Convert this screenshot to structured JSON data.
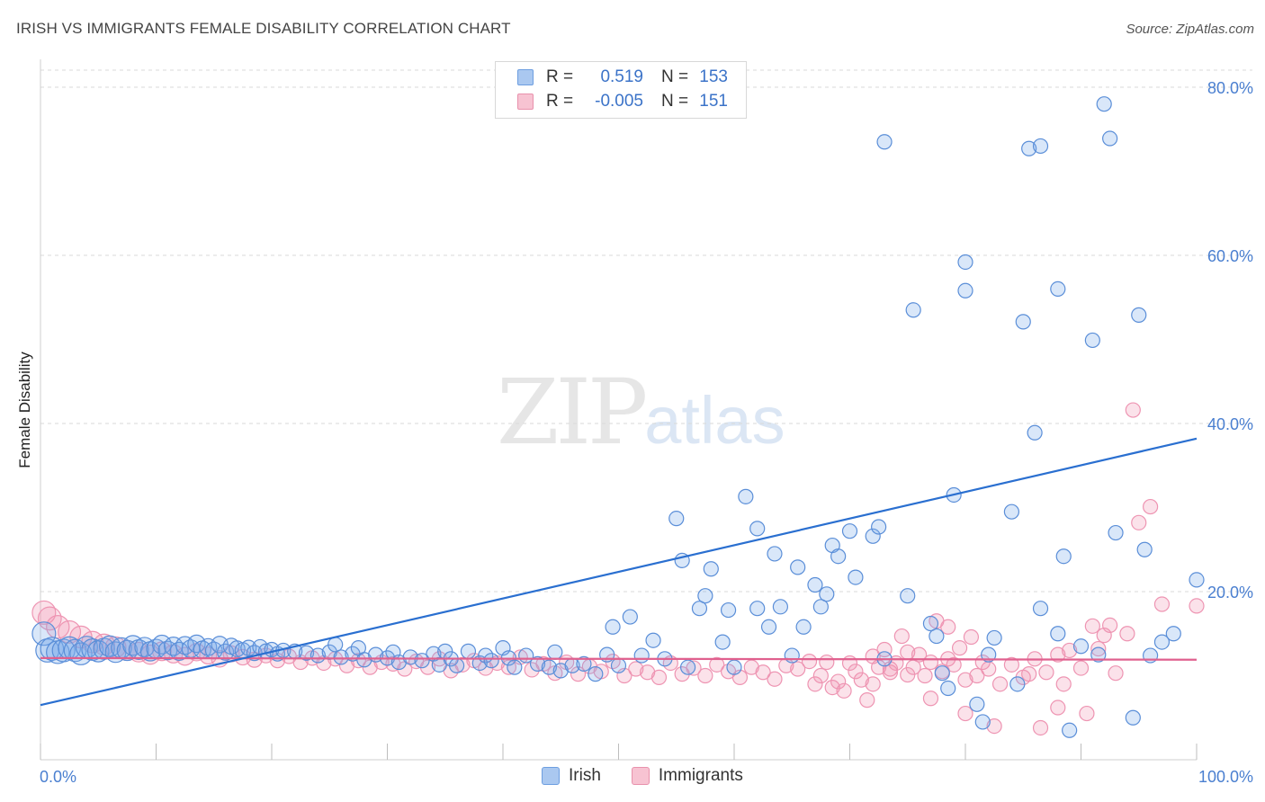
{
  "header": {
    "title": "IRISH VS IMMIGRANTS FEMALE DISABILITY CORRELATION CHART",
    "source": "Source: ZipAtlas.com"
  },
  "watermark": {
    "zip": "ZIP",
    "atlas": "atlas"
  },
  "legend": {
    "rows": [
      {
        "label": "R =",
        "r": "0.519",
        "n_label": "N =",
        "n": "153",
        "color": "#aac8f0",
        "border": "#6d9ee0"
      },
      {
        "label": "R =",
        "r": "-0.005",
        "n_label": "N =",
        "n": "151",
        "color": "#f7c3d2",
        "border": "#e891ac"
      }
    ]
  },
  "bottom_legend": {
    "irish": "Irish",
    "immigrants": "Immigrants"
  },
  "colors": {
    "irish_fill": "rgba(120,168,232,0.28)",
    "irish_stroke": "#5a8ed8",
    "irish_line": "#2a6fd0",
    "imm_fill": "rgba(242,150,180,0.28)",
    "imm_stroke": "#ee94b2",
    "imm_line": "#e0608e",
    "tick_text": "#4a7fd0",
    "grid": "#d9d9d9"
  },
  "chart_data": {
    "type": "scatter",
    "title": "IRISH VS IMMIGRANTS FEMALE DISABILITY CORRELATION CHART",
    "xlabel": "",
    "ylabel": "Female Disability",
    "xlim": [
      0,
      100
    ],
    "ylim": [
      0,
      80
    ],
    "x_tick_labels": [
      "0.0%",
      "100.0%"
    ],
    "y_ticks": [
      20,
      40,
      60,
      80
    ],
    "y_tick_labels": [
      "20.0%",
      "40.0%",
      "60.0%",
      "80.0%"
    ],
    "grid": true,
    "legend_position": "top-center",
    "series": [
      {
        "name": "Irish",
        "r": 0.519,
        "n": 153,
        "trend": {
          "x": [
            0,
            100
          ],
          "y": [
            6.5,
            38.2
          ]
        },
        "points": [
          [
            0.3,
            15.0
          ],
          [
            0.6,
            13.0
          ],
          [
            1.0,
            13.2
          ],
          [
            1.5,
            12.8
          ],
          [
            2.0,
            13.0
          ],
          [
            2.5,
            13.3
          ],
          [
            3.0,
            13.0
          ],
          [
            3.5,
            12.6
          ],
          [
            4.0,
            13.4
          ],
          [
            4.5,
            13.1
          ],
          [
            5.0,
            12.9
          ],
          [
            5.5,
            13.2
          ],
          [
            6.0,
            13.5
          ],
          [
            6.5,
            12.8
          ],
          [
            7.0,
            13.3
          ],
          [
            7.5,
            13.0
          ],
          [
            8.0,
            13.6
          ],
          [
            8.5,
            13.1
          ],
          [
            9.0,
            13.4
          ],
          [
            9.5,
            12.9
          ],
          [
            10.0,
            13.2
          ],
          [
            10.5,
            13.7
          ],
          [
            11.0,
            13.0
          ],
          [
            11.5,
            13.5
          ],
          [
            12.0,
            12.9
          ],
          [
            12.5,
            13.6
          ],
          [
            13.0,
            13.2
          ],
          [
            13.5,
            13.8
          ],
          [
            14.0,
            13.1
          ],
          [
            14.5,
            13.4
          ],
          [
            15.0,
            13.0
          ],
          [
            15.5,
            13.7
          ],
          [
            16.0,
            12.8
          ],
          [
            16.5,
            13.5
          ],
          [
            17.0,
            13.2
          ],
          [
            17.5,
            13.0
          ],
          [
            18.0,
            13.3
          ],
          [
            18.5,
            12.7
          ],
          [
            19.0,
            13.4
          ],
          [
            19.5,
            12.9
          ],
          [
            20.0,
            13.1
          ],
          [
            20.5,
            12.6
          ],
          [
            21.0,
            13.0
          ],
          [
            22.0,
            12.9
          ],
          [
            23.0,
            12.7
          ],
          [
            24.0,
            12.4
          ],
          [
            25.0,
            12.8
          ],
          [
            25.5,
            13.7
          ],
          [
            26.0,
            12.2
          ],
          [
            27.0,
            12.6
          ],
          [
            27.5,
            13.3
          ],
          [
            28.0,
            11.9
          ],
          [
            29.0,
            12.5
          ],
          [
            30.0,
            12.1
          ],
          [
            30.5,
            12.8
          ],
          [
            31.0,
            11.6
          ],
          [
            32.0,
            12.2
          ],
          [
            33.0,
            11.8
          ],
          [
            34.0,
            12.6
          ],
          [
            34.5,
            11.3
          ],
          [
            35.0,
            12.9
          ],
          [
            35.5,
            12.0
          ],
          [
            36.0,
            11.2
          ],
          [
            37.0,
            12.9
          ],
          [
            38.0,
            11.5
          ],
          [
            38.5,
            12.4
          ],
          [
            39.0,
            11.8
          ],
          [
            40.0,
            13.3
          ],
          [
            40.5,
            12.1
          ],
          [
            41.0,
            11.0
          ],
          [
            42.0,
            12.4
          ],
          [
            43.0,
            11.4
          ],
          [
            44.0,
            11.0
          ],
          [
            44.5,
            12.8
          ],
          [
            45.0,
            10.6
          ],
          [
            46.0,
            11.2
          ],
          [
            47.0,
            11.4
          ],
          [
            48.0,
            10.2
          ],
          [
            49.0,
            12.5
          ],
          [
            49.5,
            15.8
          ],
          [
            50.0,
            11.2
          ],
          [
            51.0,
            17.0
          ],
          [
            52.0,
            12.4
          ],
          [
            53.0,
            14.2
          ],
          [
            54.0,
            12.0
          ],
          [
            55.0,
            28.7
          ],
          [
            55.5,
            23.7
          ],
          [
            56.0,
            11.0
          ],
          [
            57.0,
            18.0
          ],
          [
            57.5,
            19.5
          ],
          [
            58.0,
            22.7
          ],
          [
            59.0,
            14.0
          ],
          [
            59.5,
            17.8
          ],
          [
            60.0,
            11.0
          ],
          [
            61.0,
            31.3
          ],
          [
            62.0,
            27.5
          ],
          [
            62.0,
            18.0
          ],
          [
            63.0,
            15.8
          ],
          [
            63.5,
            24.5
          ],
          [
            64.0,
            18.2
          ],
          [
            65.0,
            12.4
          ],
          [
            65.5,
            22.9
          ],
          [
            66.0,
            15.8
          ],
          [
            67.0,
            20.8
          ],
          [
            67.5,
            18.2
          ],
          [
            68.0,
            19.7
          ],
          [
            68.5,
            25.5
          ],
          [
            69.0,
            24.2
          ],
          [
            70.0,
            27.2
          ],
          [
            70.5,
            21.7
          ],
          [
            72.0,
            26.6
          ],
          [
            72.5,
            27.7
          ],
          [
            73.0,
            12.0
          ],
          [
            73.0,
            73.5
          ],
          [
            75.0,
            19.5
          ],
          [
            75.5,
            53.5
          ],
          [
            77.0,
            16.2
          ],
          [
            77.5,
            14.7
          ],
          [
            78.0,
            10.3
          ],
          [
            78.5,
            8.5
          ],
          [
            79.0,
            31.5
          ],
          [
            80.0,
            55.8
          ],
          [
            80.0,
            59.2
          ],
          [
            81.0,
            6.6
          ],
          [
            81.5,
            4.5
          ],
          [
            82.0,
            12.5
          ],
          [
            82.5,
            14.5
          ],
          [
            84.0,
            29.5
          ],
          [
            84.5,
            9.0
          ],
          [
            85.0,
            52.1
          ],
          [
            85.5,
            72.7
          ],
          [
            86.0,
            38.9
          ],
          [
            86.5,
            18.0
          ],
          [
            88.0,
            15.0
          ],
          [
            88.5,
            24.2
          ],
          [
            89.0,
            3.5
          ],
          [
            90.0,
            13.5
          ],
          [
            91.0,
            49.9
          ],
          [
            91.5,
            12.5
          ],
          [
            92.0,
            78.0
          ],
          [
            92.5,
            73.9
          ],
          [
            93.0,
            27.0
          ],
          [
            94.5,
            5.0
          ],
          [
            95.0,
            52.9
          ],
          [
            95.5,
            25.0
          ],
          [
            96.0,
            12.4
          ],
          [
            97.0,
            14.0
          ],
          [
            98.0,
            15.0
          ],
          [
            100.0,
            21.4
          ],
          [
            86.5,
            73.0
          ],
          [
            88.0,
            56.0
          ]
        ]
      },
      {
        "name": "Immigrants",
        "r": -0.005,
        "n": 151,
        "trend": {
          "x": [
            0,
            100
          ],
          "y": [
            12.1,
            11.9
          ]
        },
        "points": [
          [
            0.3,
            17.5
          ],
          [
            0.8,
            16.8
          ],
          [
            1.5,
            15.8
          ],
          [
            2.5,
            15.2
          ],
          [
            3.5,
            14.6
          ],
          [
            4.5,
            14.0
          ],
          [
            5.5,
            13.7
          ],
          [
            6.5,
            13.4
          ],
          [
            7.5,
            13.0
          ],
          [
            8.5,
            12.8
          ],
          [
            9.5,
            12.5
          ],
          [
            10.5,
            12.9
          ],
          [
            11.5,
            12.6
          ],
          [
            12.5,
            12.3
          ],
          [
            13.5,
            12.8
          ],
          [
            14.5,
            12.4
          ],
          [
            15.5,
            12.0
          ],
          [
            16.5,
            12.6
          ],
          [
            17.5,
            12.2
          ],
          [
            18.5,
            11.9
          ],
          [
            19.5,
            12.4
          ],
          [
            20.5,
            11.8
          ],
          [
            21.5,
            12.3
          ],
          [
            22.5,
            11.6
          ],
          [
            23.5,
            12.1
          ],
          [
            24.5,
            11.5
          ],
          [
            25.5,
            12.0
          ],
          [
            26.5,
            11.2
          ],
          [
            27.5,
            11.8
          ],
          [
            28.5,
            11.0
          ],
          [
            29.5,
            11.6
          ],
          [
            30.5,
            11.4
          ],
          [
            31.5,
            10.8
          ],
          [
            32.5,
            11.7
          ],
          [
            33.5,
            11.0
          ],
          [
            34.5,
            12.0
          ],
          [
            35.5,
            10.6
          ],
          [
            36.5,
            11.3
          ],
          [
            37.5,
            11.8
          ],
          [
            38.5,
            10.9
          ],
          [
            39.5,
            11.5
          ],
          [
            40.5,
            11.0
          ],
          [
            41.5,
            12.2
          ],
          [
            42.5,
            10.7
          ],
          [
            43.5,
            11.4
          ],
          [
            44.5,
            10.3
          ],
          [
            45.5,
            11.6
          ],
          [
            46.5,
            10.2
          ],
          [
            47.5,
            11.1
          ],
          [
            48.5,
            10.5
          ],
          [
            49.5,
            11.7
          ],
          [
            50.5,
            10.0
          ],
          [
            51.5,
            10.8
          ],
          [
            52.5,
            10.4
          ],
          [
            53.5,
            9.8
          ],
          [
            54.5,
            11.5
          ],
          [
            55.5,
            10.2
          ],
          [
            56.5,
            10.9
          ],
          [
            57.5,
            10.0
          ],
          [
            58.5,
            11.3
          ],
          [
            59.5,
            10.5
          ],
          [
            60.5,
            9.8
          ],
          [
            61.5,
            11.0
          ],
          [
            62.5,
            10.4
          ],
          [
            63.5,
            9.6
          ],
          [
            64.5,
            11.2
          ],
          [
            65.5,
            10.8
          ],
          [
            66.5,
            11.7
          ],
          [
            67.0,
            9.0
          ],
          [
            67.5,
            10.0
          ],
          [
            68.0,
            11.6
          ],
          [
            68.5,
            8.6
          ],
          [
            69.0,
            9.3
          ],
          [
            69.5,
            8.2
          ],
          [
            70.0,
            11.5
          ],
          [
            70.5,
            10.5
          ],
          [
            71.0,
            9.5
          ],
          [
            71.5,
            7.1
          ],
          [
            72.0,
            9.0
          ],
          [
            72.5,
            11.0
          ],
          [
            73.0,
            13.1
          ],
          [
            73.5,
            10.8
          ],
          [
            74.0,
            11.5
          ],
          [
            74.5,
            14.7
          ],
          [
            75.0,
            10.1
          ],
          [
            75.5,
            11.0
          ],
          [
            76.0,
            12.5
          ],
          [
            76.5,
            10.0
          ],
          [
            77.0,
            11.6
          ],
          [
            77.5,
            16.5
          ],
          [
            78.0,
            10.5
          ],
          [
            78.5,
            15.8
          ],
          [
            79.0,
            11.3
          ],
          [
            79.5,
            13.3
          ],
          [
            80.0,
            9.5
          ],
          [
            80.5,
            14.6
          ],
          [
            81.0,
            10.0
          ],
          [
            81.5,
            11.6
          ],
          [
            82.0,
            10.8
          ],
          [
            83.0,
            9.0
          ],
          [
            84.0,
            11.3
          ],
          [
            85.0,
            9.8
          ],
          [
            85.5,
            10.2
          ],
          [
            86.0,
            12.0
          ],
          [
            87.0,
            10.4
          ],
          [
            88.0,
            12.5
          ],
          [
            88.5,
            9.0
          ],
          [
            89.0,
            13.0
          ],
          [
            90.0,
            10.9
          ],
          [
            91.0,
            15.9
          ],
          [
            91.5,
            13.2
          ],
          [
            92.0,
            14.8
          ],
          [
            92.5,
            16.0
          ],
          [
            93.0,
            10.3
          ],
          [
            94.0,
            15.0
          ],
          [
            94.5,
            41.6
          ],
          [
            95.0,
            28.2
          ],
          [
            96.0,
            30.1
          ],
          [
            97.0,
            18.5
          ],
          [
            100.0,
            18.3
          ],
          [
            90.5,
            5.5
          ],
          [
            88.0,
            6.2
          ],
          [
            86.5,
            3.8
          ],
          [
            82.5,
            4.0
          ],
          [
            80.0,
            5.5
          ],
          [
            78.5,
            12.0
          ],
          [
            77.0,
            7.3
          ],
          [
            75.0,
            12.8
          ],
          [
            73.5,
            10.4
          ],
          [
            72.0,
            12.3
          ]
        ]
      }
    ]
  }
}
